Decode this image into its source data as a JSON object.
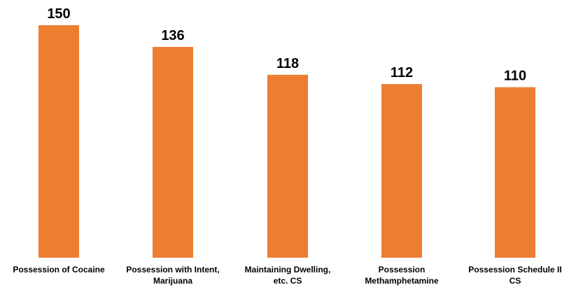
{
  "chart_data": {
    "type": "bar",
    "title": "",
    "xlabel": "",
    "ylabel": "",
    "categories": [
      [
        "Possession of Cocaine"
      ],
      [
        "Possession with Intent,",
        "Marijuana"
      ],
      [
        "Maintaining Dwelling,",
        "etc. CS"
      ],
      [
        "Possession",
        "Methamphetamine"
      ],
      [
        "Possession Schedule II",
        "CS"
      ]
    ],
    "values": [
      150,
      136,
      118,
      112,
      110
    ],
    "ylim": [
      0,
      150
    ],
    "grid": false,
    "bar_color": "#ED7D31",
    "label_color": "#000000"
  }
}
